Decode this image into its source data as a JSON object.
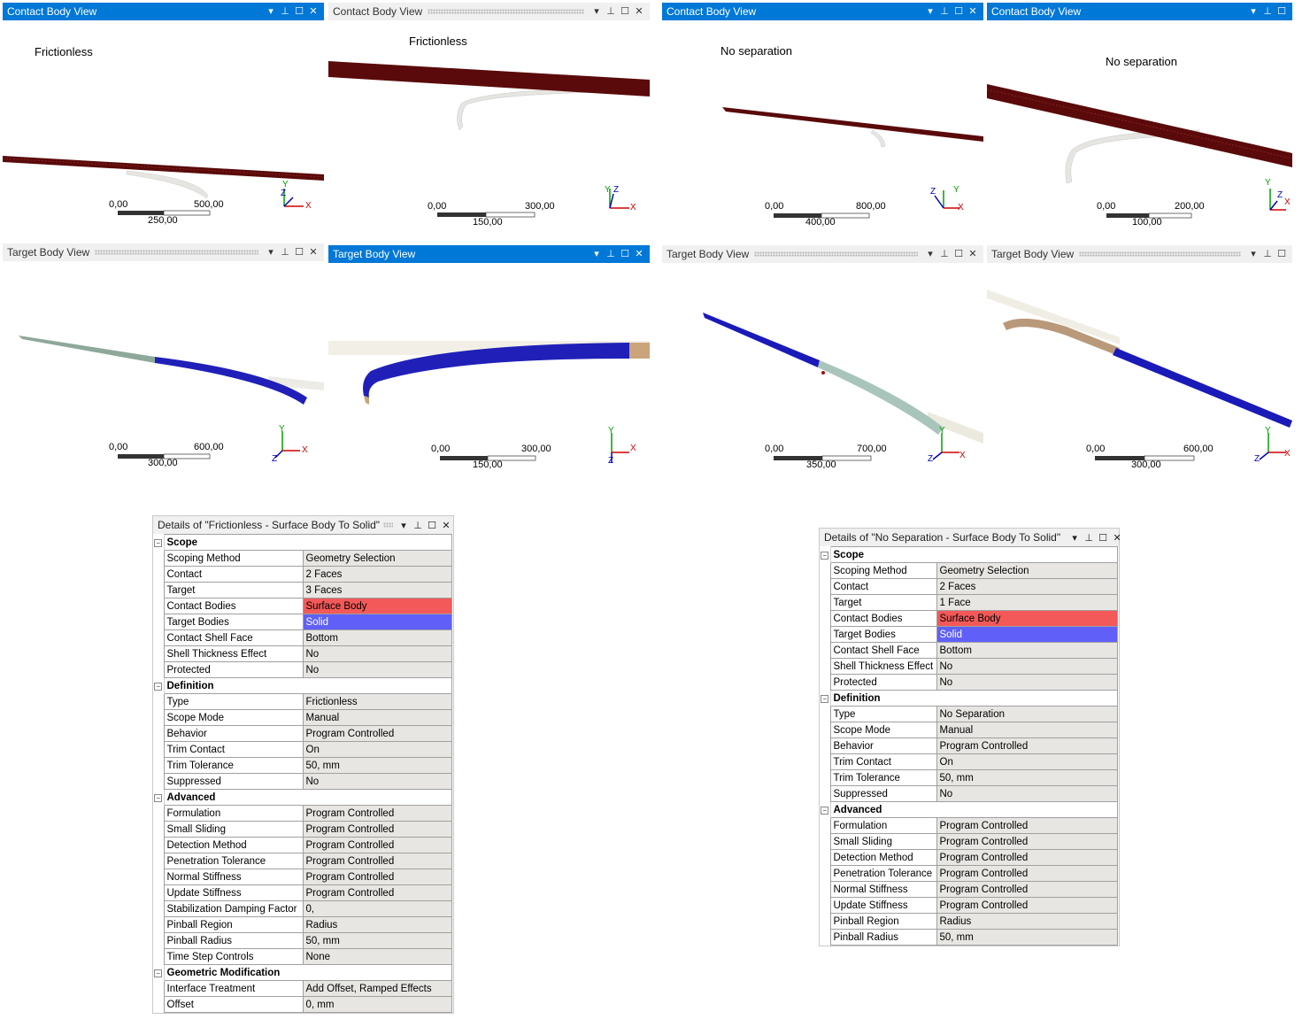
{
  "views": [
    {
      "id": "c1",
      "title": "Contact Body View",
      "label": "Frictionless",
      "scale": {
        "left": "0,00",
        "right": "500,00",
        "mid": "250,00"
      },
      "axes": {
        "a": "Y",
        "b": "X",
        "c": "Z"
      }
    },
    {
      "id": "c2",
      "title": "Contact Body View",
      "label": "Frictionless",
      "scale": {
        "left": "0,00",
        "right": "300,00",
        "mid": "150,00"
      },
      "axes": {
        "a": "Y",
        "b": "X",
        "c": "Z"
      }
    },
    {
      "id": "c3",
      "title": "Contact Body View",
      "label": "No separation",
      "scale": {
        "left": "0,00",
        "right": "800,00",
        "mid": "400,00"
      },
      "axes": {
        "a": "Y",
        "b": "X",
        "c": "Z"
      }
    },
    {
      "id": "c4",
      "title": "Contact Body View",
      "label": "No separation",
      "scale": {
        "left": "0,00",
        "right": "200,00",
        "mid": "100,00"
      },
      "axes": {
        "a": "Y",
        "b": "X",
        "c": "Z"
      }
    },
    {
      "id": "t1",
      "title": "Target Body View",
      "label": "",
      "scale": {
        "left": "0,00",
        "right": "600,00",
        "mid": "300,00"
      },
      "axes": {
        "a": "Y",
        "b": "X",
        "c": "Z"
      }
    },
    {
      "id": "t2",
      "title": "Target Body View",
      "label": "",
      "scale": {
        "left": "0,00",
        "right": "300,00",
        "mid": "150,00"
      },
      "axes": {
        "a": "Y",
        "b": "X",
        "c": "Z"
      }
    },
    {
      "id": "t3",
      "title": "Target Body View",
      "label": "",
      "scale": {
        "left": "0,00",
        "right": "700,00",
        "mid": "350,00"
      },
      "axes": {
        "a": "Y",
        "b": "X",
        "c": "Z"
      }
    },
    {
      "id": "t4",
      "title": "Target Body View",
      "label": "",
      "scale": {
        "left": "0,00",
        "right": "600,00",
        "mid": "300,00"
      },
      "axes": {
        "a": "Y",
        "b": "X",
        "c": "Z"
      }
    }
  ],
  "details": [
    {
      "title": "Details of \"Frictionless - Surface Body To Solid\"",
      "sections": [
        {
          "name": "Scope",
          "rows": [
            [
              "Scoping Method",
              "Geometry Selection",
              ""
            ],
            [
              "Contact",
              "2 Faces",
              ""
            ],
            [
              "Target",
              "3 Faces",
              ""
            ],
            [
              "Contact Bodies",
              "Surface Body",
              "red"
            ],
            [
              "Target Bodies",
              "Solid",
              "blue"
            ],
            [
              "Contact Shell Face",
              "Bottom",
              ""
            ],
            [
              "Shell Thickness Effect",
              "No",
              ""
            ],
            [
              "Protected",
              "No",
              ""
            ]
          ]
        },
        {
          "name": "Definition",
          "rows": [
            [
              "Type",
              "Frictionless",
              ""
            ],
            [
              "Scope Mode",
              "Manual",
              ""
            ],
            [
              "Behavior",
              "Program Controlled",
              ""
            ],
            [
              "Trim Contact",
              "On",
              ""
            ],
            [
              "Trim Tolerance",
              "50, mm",
              ""
            ],
            [
              "Suppressed",
              "No",
              ""
            ]
          ]
        },
        {
          "name": "Advanced",
          "rows": [
            [
              "Formulation",
              "Program Controlled",
              ""
            ],
            [
              "Small Sliding",
              "Program Controlled",
              ""
            ],
            [
              "Detection Method",
              "Program Controlled",
              ""
            ],
            [
              "Penetration Tolerance",
              "Program Controlled",
              ""
            ],
            [
              "Normal Stiffness",
              "Program Controlled",
              ""
            ],
            [
              "Update Stiffness",
              "Program Controlled",
              ""
            ],
            [
              "Stabilization Damping Factor",
              "0,",
              ""
            ],
            [
              "Pinball Region",
              "Radius",
              ""
            ],
            [
              "Pinball Radius",
              "50, mm",
              ""
            ],
            [
              "Time Step Controls",
              "None",
              ""
            ]
          ]
        },
        {
          "name": "Geometric Modification",
          "rows": [
            [
              "Interface Treatment",
              "Add Offset, Ramped Effects",
              ""
            ],
            [
              "Offset",
              "0, mm",
              ""
            ]
          ]
        }
      ]
    },
    {
      "title": "Details of \"No Separation - Surface Body To Solid\"",
      "sections": [
        {
          "name": "Scope",
          "rows": [
            [
              "Scoping Method",
              "Geometry Selection",
              ""
            ],
            [
              "Contact",
              "2 Faces",
              ""
            ],
            [
              "Target",
              "1 Face",
              ""
            ],
            [
              "Contact Bodies",
              "Surface Body",
              "red"
            ],
            [
              "Target Bodies",
              "Solid",
              "blue"
            ],
            [
              "Contact Shell Face",
              "Bottom",
              ""
            ],
            [
              "Shell Thickness Effect",
              "No",
              ""
            ],
            [
              "Protected",
              "No",
              ""
            ]
          ]
        },
        {
          "name": "Definition",
          "rows": [
            [
              "Type",
              "No Separation",
              ""
            ],
            [
              "Scope Mode",
              "Manual",
              ""
            ],
            [
              "Behavior",
              "Program Controlled",
              ""
            ],
            [
              "Trim Contact",
              "On",
              ""
            ],
            [
              "Trim Tolerance",
              "50, mm",
              ""
            ],
            [
              "Suppressed",
              "No",
              ""
            ]
          ]
        },
        {
          "name": "Advanced",
          "rows": [
            [
              "Formulation",
              "Program Controlled",
              ""
            ],
            [
              "Small Sliding",
              "Program Controlled",
              ""
            ],
            [
              "Detection Method",
              "Program Controlled",
              ""
            ],
            [
              "Penetration Tolerance",
              "Program Controlled",
              ""
            ],
            [
              "Normal Stiffness",
              "Program Controlled",
              ""
            ],
            [
              "Update Stiffness",
              "Program Controlled",
              ""
            ],
            [
              "Pinball Region",
              "Radius",
              ""
            ],
            [
              "Pinball Radius",
              "50, mm",
              ""
            ]
          ]
        }
      ]
    }
  ],
  "icons": {
    "dropdown": "chevron-down-icon",
    "pin": "pin-icon",
    "maximize": "maximize-icon",
    "close": "close-icon",
    "collapse": "collapse-icon"
  },
  "colors": {
    "active_title": "#0078d7",
    "contact_body": "#f35959",
    "target_body": "#6060f8",
    "dark_red": "#5a0a0a",
    "body_blue": "#1a1ab8"
  }
}
